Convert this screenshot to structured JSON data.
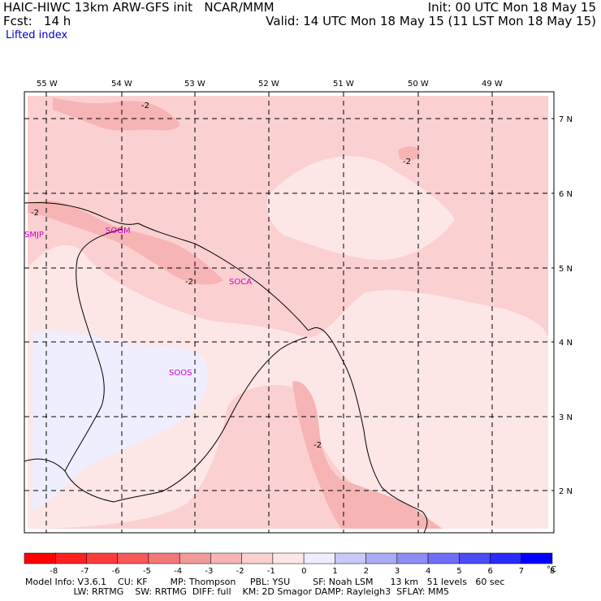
{
  "header": {
    "title": "HAIC-HIWC 13km ARW-GFS init   NCAR/MMM",
    "init": "Init: 00 UTC Mon 18 May 15",
    "fcst": "Fcst:   14 h",
    "valid": "Valid: 14 UTC Mon 18 May 15 (11 LST Mon 18 May 15)",
    "field": "Lifted index"
  },
  "map": {
    "lon_labels": [
      "55 W",
      "54 W",
      "53 W",
      "52 W",
      "51 W",
      "50 W",
      "49 W"
    ],
    "lat_labels": [
      "7 N",
      "6 N",
      "5 N",
      "4 N",
      "3 N",
      "2 N"
    ],
    "stations": [
      "SMJP",
      "SOGM",
      "SOCA",
      "SOOS"
    ],
    "contour_labels": [
      "-2",
      "-2",
      "-2",
      "-2",
      "-2"
    ]
  },
  "colorbar": {
    "ticks": [
      "-8",
      "-7",
      "-6",
      "-5",
      "-4",
      "-3",
      "-2",
      "-1",
      "0",
      "1",
      "2",
      "3",
      "4",
      "5",
      "6",
      "7",
      "8"
    ],
    "unit": "°C",
    "colors": [
      "#ff0000",
      "#ff2020",
      "#fe3c3c",
      "#f85858",
      "#f47878",
      "#f29a9a",
      "#f6b4b4",
      "#fbd0d0",
      "#fde6e6",
      "#eeeeff",
      "#c8c8fa",
      "#aaaaf6",
      "#8c8cf4",
      "#6e6ef6",
      "#4b4bf8",
      "#2a2afa",
      "#0000ff"
    ]
  },
  "footer": {
    "line1": "Model Info: V3.6.1    CU: KF        MP: Thompson     PBL: YSU        SF: Noah LSM      13 km   51 levels   60 sec",
    "line2": "                 LW: RRTMG    SW: RRTMG  DIFF: full    KM: 2D Smagor DAMP: Rayleigh3  SFLAY: MM5"
  }
}
